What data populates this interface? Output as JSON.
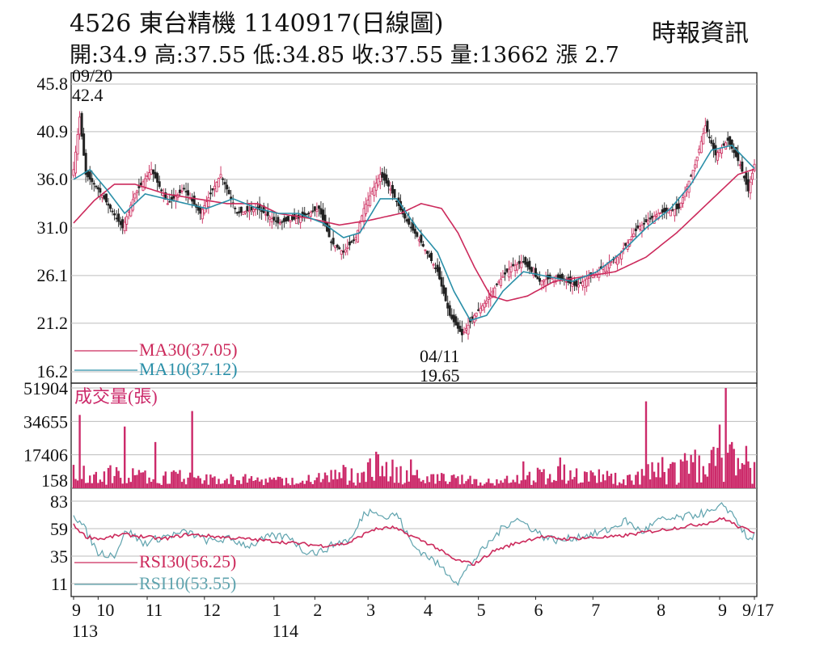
{
  "header": {
    "title": "4526  東台精機 1140917(日線圖)",
    "ohlc": "開:34.9 高:37.55 低:34.85 收:37.55 量:13662 漲 2.7",
    "source": "時報資訊"
  },
  "colors": {
    "ma30": "#cc2a5c",
    "ma10": "#2a8fa8",
    "volume": "#cc2a6a",
    "rsi30": "#cc2a5c",
    "rsi10": "#5fa3ae",
    "grid": "#bdbdbd",
    "candle": "#222222"
  },
  "chart_data": [
    {
      "type": "candlestick",
      "panel": "price",
      "y_ticks": [
        "45.8",
        "40.9",
        "36.0",
        "31.0",
        "26.1",
        "21.2",
        "16.2"
      ],
      "ylim": [
        16.2,
        45.8
      ],
      "grid": true,
      "annotations": {
        "high": {
          "date": "09/20",
          "value": "42.4"
        },
        "low": {
          "date": "04/11",
          "value": "19.65"
        }
      },
      "legend": [
        {
          "label": "MA30(37.05)",
          "series": "ma30"
        },
        {
          "label": "MA10(37.12)",
          "series": "ma10"
        }
      ],
      "close_anchors": [
        [
          0,
          37.0
        ],
        [
          3,
          42.4
        ],
        [
          6,
          36.5
        ],
        [
          12,
          35.0
        ],
        [
          18,
          33.0
        ],
        [
          24,
          31.0
        ],
        [
          30,
          34.5
        ],
        [
          38,
          37.0
        ],
        [
          46,
          33.5
        ],
        [
          54,
          35.0
        ],
        [
          62,
          32.5
        ],
        [
          72,
          36.5
        ],
        [
          80,
          32.5
        ],
        [
          90,
          33.0
        ],
        [
          100,
          31.5
        ],
        [
          110,
          32.0
        ],
        [
          120,
          33.0
        ],
        [
          126,
          29.5
        ],
        [
          132,
          28.5
        ],
        [
          138,
          30.0
        ],
        [
          142,
          33.0
        ],
        [
          150,
          36.5
        ],
        [
          155,
          35.0
        ],
        [
          162,
          32.0
        ],
        [
          170,
          29.5
        ],
        [
          178,
          26.5
        ],
        [
          184,
          22.0
        ],
        [
          190,
          20.0
        ],
        [
          196,
          22.0
        ],
        [
          202,
          23.5
        ],
        [
          208,
          25.5
        ],
        [
          214,
          27.0
        ],
        [
          220,
          27.5
        ],
        [
          228,
          25.5
        ],
        [
          236,
          26.0
        ],
        [
          246,
          25.0
        ],
        [
          256,
          26.5
        ],
        [
          266,
          28.0
        ],
        [
          276,
          31.0
        ],
        [
          286,
          32.5
        ],
        [
          296,
          33.0
        ],
        [
          304,
          37.5
        ],
        [
          309,
          41.5
        ],
        [
          314,
          38.5
        ],
        [
          320,
          40.0
        ],
        [
          326,
          37.5
        ],
        [
          330,
          34.8
        ],
        [
          333,
          37.55
        ]
      ],
      "ma30_anchors": [
        [
          0,
          31.5
        ],
        [
          10,
          33.8
        ],
        [
          20,
          35.5
        ],
        [
          30,
          35.5
        ],
        [
          45,
          34.5
        ],
        [
          60,
          34.0
        ],
        [
          75,
          33.5
        ],
        [
          90,
          33.5
        ],
        [
          100,
          32.5
        ],
        [
          115,
          32.0
        ],
        [
          130,
          31.3
        ],
        [
          145,
          31.8
        ],
        [
          160,
          32.5
        ],
        [
          170,
          33.5
        ],
        [
          180,
          33.0
        ],
        [
          188,
          30.5
        ],
        [
          196,
          27.0
        ],
        [
          204,
          24.0
        ],
        [
          212,
          23.5
        ],
        [
          222,
          24.0
        ],
        [
          235,
          25.5
        ],
        [
          250,
          26.0
        ],
        [
          265,
          26.5
        ],
        [
          280,
          28.0
        ],
        [
          295,
          30.5
        ],
        [
          310,
          33.5
        ],
        [
          325,
          36.5
        ],
        [
          333,
          37.05
        ]
      ],
      "ma10_anchors": [
        [
          0,
          36.0
        ],
        [
          8,
          37.0
        ],
        [
          16,
          35.0
        ],
        [
          25,
          32.5
        ],
        [
          35,
          34.5
        ],
        [
          45,
          34.0
        ],
        [
          55,
          33.5
        ],
        [
          65,
          33.0
        ],
        [
          78,
          34.0
        ],
        [
          90,
          33.0
        ],
        [
          100,
          32.5
        ],
        [
          110,
          32.5
        ],
        [
          122,
          31.5
        ],
        [
          132,
          30.0
        ],
        [
          140,
          30.5
        ],
        [
          150,
          34.0
        ],
        [
          158,
          34.0
        ],
        [
          168,
          31.0
        ],
        [
          178,
          28.5
        ],
        [
          186,
          24.5
        ],
        [
          194,
          21.5
        ],
        [
          202,
          22.0
        ],
        [
          210,
          24.5
        ],
        [
          220,
          26.5
        ],
        [
          232,
          26.0
        ],
        [
          244,
          25.5
        ],
        [
          256,
          26.5
        ],
        [
          268,
          28.5
        ],
        [
          280,
          31.0
        ],
        [
          292,
          33.0
        ],
        [
          302,
          35.5
        ],
        [
          312,
          39.0
        ],
        [
          322,
          39.5
        ],
        [
          333,
          37.12
        ]
      ]
    },
    {
      "type": "bar",
      "panel": "volume",
      "legend": "成交量(張)",
      "y_ticks": [
        "51904",
        "34655",
        "17406",
        "158"
      ],
      "ylim": [
        158,
        51904
      ],
      "spikes": [
        [
          3,
          38000
        ],
        [
          25,
          32000
        ],
        [
          40,
          24000
        ],
        [
          58,
          40000
        ],
        [
          120,
          8000
        ],
        [
          148,
          19000
        ],
        [
          165,
          15000
        ],
        [
          220,
          14000
        ],
        [
          238,
          16000
        ],
        [
          280,
          45000
        ],
        [
          298,
          14000
        ],
        [
          316,
          33000
        ],
        [
          319,
          51904
        ],
        [
          322,
          24000
        ],
        [
          329,
          22000
        ],
        [
          333,
          13662
        ]
      ]
    },
    {
      "type": "line",
      "panel": "rsi",
      "y_ticks": [
        "83",
        "59",
        "35",
        "11"
      ],
      "ylim": [
        11,
        83
      ],
      "legend": [
        {
          "label": "RSI30(56.25)",
          "series": "rsi30"
        },
        {
          "label": "RSI10(53.55)",
          "series": "rsi10"
        }
      ],
      "rsi30_anchors": [
        [
          0,
          62
        ],
        [
          6,
          52
        ],
        [
          14,
          50
        ],
        [
          24,
          54
        ],
        [
          34,
          52
        ],
        [
          44,
          50
        ],
        [
          56,
          54
        ],
        [
          70,
          52
        ],
        [
          84,
          50
        ],
        [
          98,
          48
        ],
        [
          110,
          46
        ],
        [
          122,
          44
        ],
        [
          134,
          46
        ],
        [
          146,
          58
        ],
        [
          156,
          60
        ],
        [
          166,
          52
        ],
        [
          176,
          44
        ],
        [
          186,
          32
        ],
        [
          196,
          28
        ],
        [
          206,
          40
        ],
        [
          216,
          46
        ],
        [
          228,
          52
        ],
        [
          240,
          50
        ],
        [
          252,
          51
        ],
        [
          266,
          52
        ],
        [
          280,
          56
        ],
        [
          296,
          60
        ],
        [
          310,
          64
        ],
        [
          318,
          68
        ],
        [
          326,
          60
        ],
        [
          333,
          56.25
        ]
      ],
      "rsi10_anchors": [
        [
          0,
          72
        ],
        [
          5,
          60
        ],
        [
          12,
          38
        ],
        [
          20,
          36
        ],
        [
          26,
          58
        ],
        [
          34,
          46
        ],
        [
          44,
          52
        ],
        [
          56,
          56
        ],
        [
          66,
          48
        ],
        [
          76,
          50
        ],
        [
          86,
          44
        ],
        [
          96,
          52
        ],
        [
          106,
          52
        ],
        [
          112,
          40
        ],
        [
          120,
          38
        ],
        [
          128,
          46
        ],
        [
          136,
          50
        ],
        [
          142,
          72
        ],
        [
          148,
          76
        ],
        [
          152,
          68
        ],
        [
          158,
          72
        ],
        [
          166,
          44
        ],
        [
          174,
          34
        ],
        [
          182,
          22
        ],
        [
          188,
          12
        ],
        [
          194,
          28
        ],
        [
          202,
          44
        ],
        [
          210,
          60
        ],
        [
          216,
          68
        ],
        [
          222,
          62
        ],
        [
          230,
          52
        ],
        [
          238,
          48
        ],
        [
          246,
          52
        ],
        [
          254,
          54
        ],
        [
          262,
          58
        ],
        [
          270,
          66
        ],
        [
          278,
          56
        ],
        [
          286,
          66
        ],
        [
          296,
          68
        ],
        [
          306,
          72
        ],
        [
          314,
          74
        ],
        [
          318,
          80
        ],
        [
          324,
          68
        ],
        [
          330,
          48
        ],
        [
          333,
          53.55
        ]
      ]
    }
  ],
  "x_axis": {
    "labels": [
      {
        "text": "9",
        "sub": "113",
        "i": 0
      },
      {
        "text": "10",
        "i": 12
      },
      {
        "text": "11",
        "i": 36
      },
      {
        "text": "12",
        "i": 64
      },
      {
        "text": "1",
        "sub": "114",
        "i": 98
      },
      {
        "text": "2",
        "i": 118
      },
      {
        "text": "3",
        "i": 144
      },
      {
        "text": "4",
        "i": 172
      },
      {
        "text": "5",
        "i": 198
      },
      {
        "text": "6",
        "i": 226
      },
      {
        "text": "7",
        "i": 254
      },
      {
        "text": "8",
        "i": 286
      },
      {
        "text": "9",
        "i": 316
      },
      {
        "text": "9/17",
        "i": 333
      }
    ]
  }
}
